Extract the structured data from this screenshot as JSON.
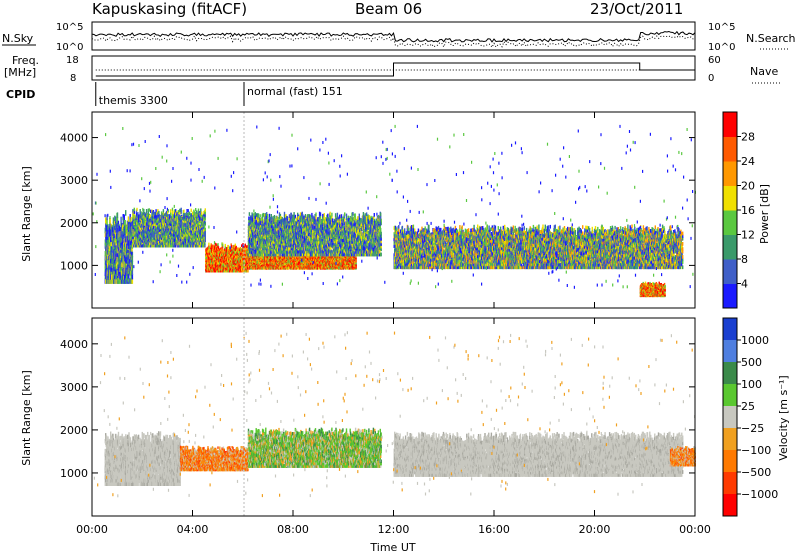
{
  "header": {
    "station": "Kapuskasing (fitACF)",
    "beam": "Beam 06",
    "date": "23/Oct/2011"
  },
  "strips": {
    "nsky_label": "N.Sky",
    "nsky_ticks": [
      "10^5",
      "10^0"
    ],
    "nsearch_label": "N.Search",
    "nsearch_ticks": [
      "10^5",
      "10^0"
    ],
    "freq_label_1": "Freq.",
    "freq_label_2": "[MHz]",
    "freq_ticks": [
      "18",
      "8"
    ],
    "nave_label": "Nave",
    "nave_ticks": [
      "60",
      "0"
    ],
    "cpid_label": "CPID",
    "cpid_modes": [
      "themis 3300",
      "normal (fast) 151"
    ],
    "cpid_change_hours": [
      0.15,
      6.05
    ]
  },
  "chart_data": [
    {
      "type": "heatmap",
      "panel": "power",
      "xlabel": "",
      "ylabel": "Slant Range [km]",
      "xlim": [
        0,
        24
      ],
      "ylim": [
        0,
        4600
      ],
      "yticks": [
        "1000",
        "2000",
        "3000",
        "4000"
      ],
      "colorbar": {
        "label": "Power [dB]",
        "ticks": [
          "4",
          "8",
          "12",
          "16",
          "20",
          "24",
          "28"
        ],
        "colors": [
          "#1a1aff",
          "#3f5fc8",
          "#3a9a6a",
          "#5ac840",
          "#f0e000",
          "#ff9800",
          "#ff5a00",
          "#ff0000"
        ]
      },
      "bands": [
        {
          "t0": 0.5,
          "t1": 1.6,
          "r0": 700,
          "r1": 2200,
          "level": "low"
        },
        {
          "t0": 1.6,
          "t1": 4.5,
          "r0": 1500,
          "r1": 2300,
          "level": "mid"
        },
        {
          "t0": 4.5,
          "t1": 6.2,
          "r0": 900,
          "r1": 1500,
          "level": "high"
        },
        {
          "t0": 6.2,
          "t1": 10.5,
          "r0": 950,
          "r1": 1300,
          "level": "high"
        },
        {
          "t0": 6.2,
          "t1": 11.5,
          "r0": 1300,
          "r1": 2200,
          "level": "mid"
        },
        {
          "t0": 12.0,
          "t1": 23.5,
          "r0": 1000,
          "r1": 1900,
          "level": "low-mid"
        },
        {
          "t0": 21.8,
          "t1": 22.8,
          "r0": 300,
          "r1": 600,
          "level": "high"
        }
      ]
    },
    {
      "type": "heatmap",
      "panel": "velocity",
      "xlabel": "Time UT",
      "ylabel": "Slant Range [km]",
      "xlim": [
        0,
        24
      ],
      "ylim": [
        0,
        4600
      ],
      "xticks": [
        "00:00",
        "04:00",
        "08:00",
        "12:00",
        "16:00",
        "20:00",
        "00:00"
      ],
      "yticks": [
        "1000",
        "2000",
        "3000",
        "4000"
      ],
      "colorbar": {
        "label": "Velocity [m s⁻¹]",
        "ticks": [
          "1000",
          "500",
          "100",
          "25",
          "−25",
          "−100",
          "−500",
          "−1000"
        ],
        "colors": [
          "#1a3fd0",
          "#4f7fe0",
          "#3a8a4a",
          "#5ac830",
          "#c8c8c0",
          "#f0a020",
          "#ff7a00",
          "#ff3a00",
          "#ff0000"
        ]
      },
      "bands": [
        {
          "t0": 0.5,
          "t1": 3.5,
          "r0": 800,
          "r1": 1900,
          "level": "gray"
        },
        {
          "t0": 3.5,
          "t1": 6.2,
          "r0": 1100,
          "r1": 1600,
          "level": "orange"
        },
        {
          "t0": 6.2,
          "t1": 11.5,
          "r0": 1200,
          "r1": 2000,
          "level": "green"
        },
        {
          "t0": 12.0,
          "t1": 23.5,
          "r0": 1000,
          "r1": 1900,
          "level": "gray"
        },
        {
          "t0": 23.0,
          "t1": 24.0,
          "r0": 1200,
          "r1": 1600,
          "level": "orange"
        }
      ]
    }
  ],
  "colors": {
    "frame": "#000000",
    "background": "#ffffff"
  }
}
